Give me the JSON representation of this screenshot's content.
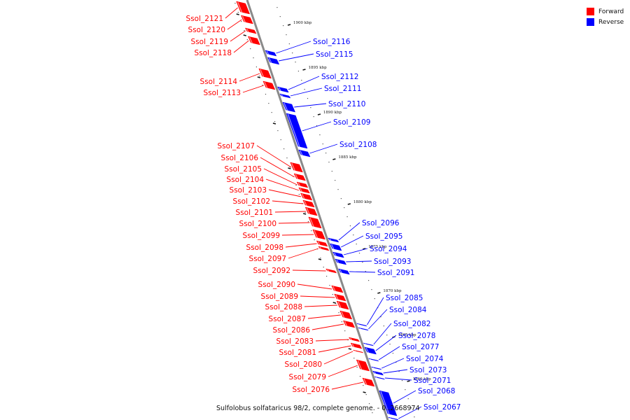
{
  "legend": [
    {
      "label": "Forward",
      "color": "#ff0000"
    },
    {
      "label": "Reverse",
      "color": "#0000ff"
    }
  ],
  "caption": "Sulfolobus solfataricus 98/2, complete genome. - 0..2668974",
  "colors": {
    "forward": "#ff0000",
    "reverse": "#0000ff",
    "axis": "#8a8a8a"
  },
  "ticks": [
    "1900 kbp",
    "1895 kbp",
    "1890 kbp",
    "1885 kbp",
    "1880 kbp",
    "1875 kbp",
    "1870 kbp",
    "1865 kbp",
    "1860 kbp"
  ],
  "forward_genes": [
    "Ssol_2121",
    "Ssol_2120",
    "Ssol_2119",
    "Ssol_2118",
    "Ssol_2114",
    "Ssol_2113",
    "Ssol_2107",
    "Ssol_2106",
    "Ssol_2105",
    "Ssol_2104",
    "Ssol_2103",
    "Ssol_2102",
    "Ssol_2101",
    "Ssol_2100",
    "Ssol_2099",
    "Ssol_2098",
    "Ssol_2097",
    "Ssol_2092",
    "Ssol_2090",
    "Ssol_2089",
    "Ssol_2088",
    "Ssol_2087",
    "Ssol_2086",
    "Ssol_2083",
    "Ssol_2081",
    "Ssol_2080",
    "Ssol_2079",
    "Ssol_2076"
  ],
  "reverse_genes": [
    "Ssol_2116",
    "Ssol_2115",
    "Ssol_2112",
    "Ssol_2111",
    "Ssol_2110",
    "Ssol_2109",
    "Ssol_2108",
    "Ssol_2096",
    "Ssol_2095",
    "Ssol_2094",
    "Ssol_2093",
    "Ssol_2091",
    "Ssol_2085",
    "Ssol_2084",
    "Ssol_2082",
    "Ssol_2078",
    "Ssol_2077",
    "Ssol_2074",
    "Ssol_2073",
    "Ssol_2071",
    "Ssol_2068",
    "Ssol_2067"
  ]
}
